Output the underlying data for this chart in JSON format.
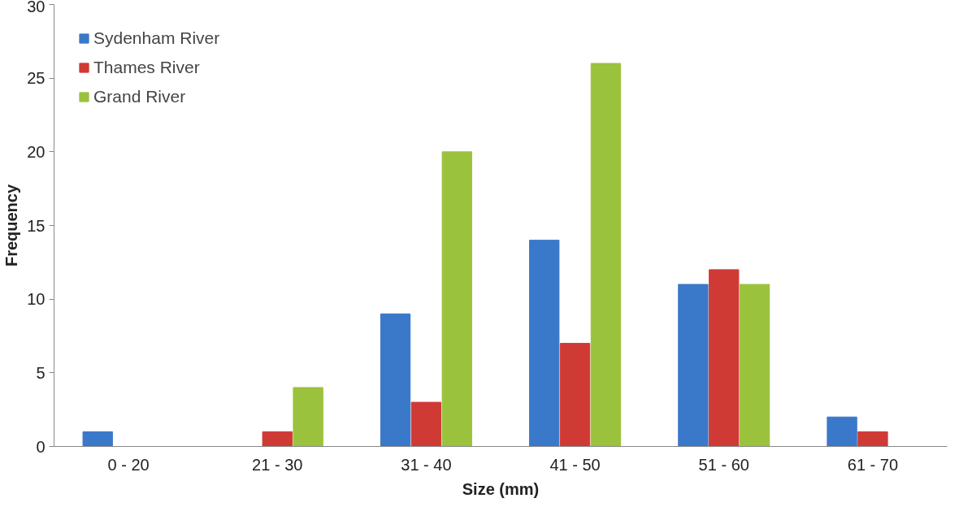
{
  "chart_data": {
    "type": "bar",
    "xlabel": "Size (mm)",
    "ylabel": "Frequency",
    "categories": [
      "0 - 20",
      "21 - 30",
      "31 - 40",
      "41 - 50",
      "51 - 60",
      "61 - 70"
    ],
    "series": [
      {
        "name": "Sydenham River",
        "color": "#3a78c9",
        "values": [
          1,
          0,
          9,
          14,
          11,
          2
        ]
      },
      {
        "name": "Thames River",
        "color": "#d03a35",
        "values": [
          0,
          1,
          3,
          7,
          12,
          1
        ]
      },
      {
        "name": "Grand River",
        "color": "#9bc23c",
        "values": [
          0,
          4,
          20,
          26,
          11,
          0
        ]
      }
    ],
    "ylim": [
      0,
      30
    ],
    "yticks": [
      0,
      5,
      10,
      15,
      20,
      25,
      30
    ],
    "grid": false,
    "legend": "top left"
  }
}
